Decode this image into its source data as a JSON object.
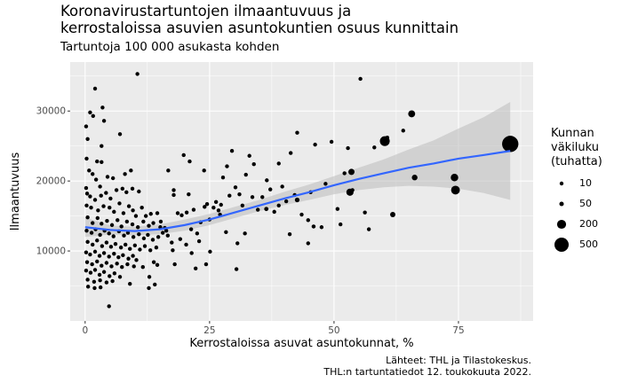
{
  "title_line1": "Koronavirustartuntojen ilmaantuvuus ja",
  "title_line2": "kerrostaloissa asuvien asuntokuntien osuus kunnittain",
  "subtitle": "Tartuntoja 100 000 asukasta kohden",
  "caption_line1": "Lähteet: THL ja Tilastokeskus.",
  "caption_line2": "THL:n tartuntatiedot 12. toukokuuta 2022.",
  "legend": {
    "title_lines": [
      "Kunnan",
      "väkiluku",
      "(tuhatta)"
    ],
    "entries": [
      "10",
      "50",
      "200",
      "500"
    ]
  },
  "colors": {
    "panel": "#ebebeb",
    "grid_major": "#ffffff",
    "point": "#000000",
    "smooth_line": "#3366ff",
    "ribbon": "#c0c0c0"
  },
  "chart_data": {
    "type": "scatter",
    "xlabel": "Kerrostaloissa asuvat asuntokunnat, %",
    "ylabel": "Ilmaantuvuus",
    "xlim": [
      -3,
      90
    ],
    "ylim": [
      0,
      37000
    ],
    "x_ticks": [
      0,
      25,
      50,
      75
    ],
    "x_tick_labels": [
      "0",
      "25",
      "50",
      "75"
    ],
    "y_ticks": [
      10000,
      20000,
      30000
    ],
    "y_tick_labels": [
      "10000",
      "20000",
      "30000"
    ],
    "grid": true,
    "legend_position": "right",
    "size_variable_legend_values": [
      10,
      50,
      200,
      500
    ],
    "points": [
      {
        "x": 0.2,
        "y": 27800,
        "pop": 4
      },
      {
        "x": 0.5,
        "y": 26000,
        "pop": 3
      },
      {
        "x": 1.0,
        "y": 29800,
        "pop": 3
      },
      {
        "x": 1.6,
        "y": 29300,
        "pop": 2
      },
      {
        "x": 2.0,
        "y": 33200,
        "pop": 2
      },
      {
        "x": 3.5,
        "y": 30500,
        "pop": 3
      },
      {
        "x": 3.8,
        "y": 28600,
        "pop": 2
      },
      {
        "x": 3.3,
        "y": 25000,
        "pop": 3
      },
      {
        "x": 7.0,
        "y": 26700,
        "pop": 3
      },
      {
        "x": 10.5,
        "y": 35300,
        "pop": 4
      },
      {
        "x": 0.3,
        "y": 23200,
        "pop": 3
      },
      {
        "x": 0.8,
        "y": 21500,
        "pop": 4
      },
      {
        "x": 1.5,
        "y": 21000,
        "pop": 5
      },
      {
        "x": 2.4,
        "y": 22800,
        "pop": 4
      },
      {
        "x": 3.3,
        "y": 22700,
        "pop": 6
      },
      {
        "x": 2.2,
        "y": 20200,
        "pop": 4
      },
      {
        "x": 3.0,
        "y": 19200,
        "pop": 5
      },
      {
        "x": 0.2,
        "y": 19000,
        "pop": 3
      },
      {
        "x": 4.5,
        "y": 20600,
        "pop": 4
      },
      {
        "x": 5.6,
        "y": 20400,
        "pop": 3
      },
      {
        "x": 8.0,
        "y": 21000,
        "pop": 3
      },
      {
        "x": 9.2,
        "y": 21500,
        "pop": 6
      },
      {
        "x": 0.4,
        "y": 18200,
        "pop": 4
      },
      {
        "x": 1.0,
        "y": 17800,
        "pop": 6
      },
      {
        "x": 2.0,
        "y": 17300,
        "pop": 5
      },
      {
        "x": 3.2,
        "y": 17900,
        "pop": 4
      },
      {
        "x": 4.2,
        "y": 18300,
        "pop": 5
      },
      {
        "x": 5.1,
        "y": 17500,
        "pop": 6
      },
      {
        "x": 6.3,
        "y": 18700,
        "pop": 4
      },
      {
        "x": 7.5,
        "y": 18900,
        "pop": 3
      },
      {
        "x": 8.3,
        "y": 18400,
        "pop": 6
      },
      {
        "x": 9.5,
        "y": 18900,
        "pop": 5
      },
      {
        "x": 10.8,
        "y": 18500,
        "pop": 4
      },
      {
        "x": 0.3,
        "y": 16500,
        "pop": 3
      },
      {
        "x": 1.2,
        "y": 16200,
        "pop": 5
      },
      {
        "x": 2.6,
        "y": 15800,
        "pop": 6
      },
      {
        "x": 3.7,
        "y": 16400,
        "pop": 4
      },
      {
        "x": 4.9,
        "y": 16200,
        "pop": 7
      },
      {
        "x": 5.8,
        "y": 15600,
        "pop": 5
      },
      {
        "x": 6.9,
        "y": 16800,
        "pop": 4
      },
      {
        "x": 7.7,
        "y": 15400,
        "pop": 6
      },
      {
        "x": 8.8,
        "y": 16400,
        "pop": 5
      },
      {
        "x": 9.6,
        "y": 15800,
        "pop": 8
      },
      {
        "x": 10.2,
        "y": 15000,
        "pop": 6
      },
      {
        "x": 11.4,
        "y": 16200,
        "pop": 4
      },
      {
        "x": 12.2,
        "y": 15000,
        "pop": 5
      },
      {
        "x": 13.2,
        "y": 15300,
        "pop": 4
      },
      {
        "x": 14.5,
        "y": 15400,
        "pop": 6
      },
      {
        "x": 16.7,
        "y": 21500,
        "pop": 4
      },
      {
        "x": 17.8,
        "y": 18700,
        "pop": 7
      },
      {
        "x": 19.8,
        "y": 23700,
        "pop": 5
      },
      {
        "x": 21.0,
        "y": 22800,
        "pop": 6
      },
      {
        "x": 0.5,
        "y": 14800,
        "pop": 4
      },
      {
        "x": 1.5,
        "y": 14000,
        "pop": 6
      },
      {
        "x": 2.5,
        "y": 14700,
        "pop": 5
      },
      {
        "x": 3.3,
        "y": 13900,
        "pop": 4
      },
      {
        "x": 4.4,
        "y": 14300,
        "pop": 6
      },
      {
        "x": 5.4,
        "y": 13700,
        "pop": 5
      },
      {
        "x": 6.5,
        "y": 14400,
        "pop": 7
      },
      {
        "x": 7.3,
        "y": 13500,
        "pop": 5
      },
      {
        "x": 8.4,
        "y": 14200,
        "pop": 4
      },
      {
        "x": 9.5,
        "y": 13800,
        "pop": 6
      },
      {
        "x": 10.6,
        "y": 13400,
        "pop": 5
      },
      {
        "x": 11.7,
        "y": 14200,
        "pop": 7
      },
      {
        "x": 12.8,
        "y": 13600,
        "pop": 5
      },
      {
        "x": 13.7,
        "y": 14000,
        "pop": 6
      },
      {
        "x": 15.2,
        "y": 14200,
        "pop": 5
      },
      {
        "x": 16.0,
        "y": 13300,
        "pop": 4
      },
      {
        "x": 0.3,
        "y": 12900,
        "pop": 3
      },
      {
        "x": 1.3,
        "y": 12600,
        "pop": 5
      },
      {
        "x": 2.1,
        "y": 13100,
        "pop": 6
      },
      {
        "x": 3.0,
        "y": 12300,
        "pop": 7
      },
      {
        "x": 3.9,
        "y": 12900,
        "pop": 5
      },
      {
        "x": 4.8,
        "y": 12500,
        "pop": 4
      },
      {
        "x": 5.7,
        "y": 12100,
        "pop": 6
      },
      {
        "x": 6.8,
        "y": 12800,
        "pop": 5
      },
      {
        "x": 7.8,
        "y": 12200,
        "pop": 7
      },
      {
        "x": 8.6,
        "y": 12600,
        "pop": 5
      },
      {
        "x": 9.7,
        "y": 12000,
        "pop": 6
      },
      {
        "x": 10.8,
        "y": 12400,
        "pop": 4
      },
      {
        "x": 11.8,
        "y": 11800,
        "pop": 5
      },
      {
        "x": 12.6,
        "y": 12300,
        "pop": 7
      },
      {
        "x": 13.6,
        "y": 11600,
        "pop": 4
      },
      {
        "x": 14.7,
        "y": 12000,
        "pop": 6
      },
      {
        "x": 16.6,
        "y": 12200,
        "pop": 4
      },
      {
        "x": 17.4,
        "y": 11200,
        "pop": 5
      },
      {
        "x": 0.5,
        "y": 11300,
        "pop": 4
      },
      {
        "x": 1.5,
        "y": 10900,
        "pop": 6
      },
      {
        "x": 2.4,
        "y": 11500,
        "pop": 5
      },
      {
        "x": 3.4,
        "y": 10700,
        "pop": 6
      },
      {
        "x": 4.3,
        "y": 11200,
        "pop": 7
      },
      {
        "x": 5.2,
        "y": 10600,
        "pop": 5
      },
      {
        "x": 6.1,
        "y": 11000,
        "pop": 4
      },
      {
        "x": 7.2,
        "y": 10500,
        "pop": 6
      },
      {
        "x": 8.1,
        "y": 10900,
        "pop": 5
      },
      {
        "x": 9.0,
        "y": 10300,
        "pop": 4
      },
      {
        "x": 10.0,
        "y": 10800,
        "pop": 5
      },
      {
        "x": 11.0,
        "y": 10200,
        "pop": 6
      },
      {
        "x": 12.0,
        "y": 10700,
        "pop": 4
      },
      {
        "x": 13.1,
        "y": 10100,
        "pop": 5
      },
      {
        "x": 14.3,
        "y": 10500,
        "pop": 7
      },
      {
        "x": 0.2,
        "y": 9800,
        "pop": 5
      },
      {
        "x": 1.0,
        "y": 9500,
        "pop": 7
      },
      {
        "x": 2.0,
        "y": 9900,
        "pop": 4
      },
      {
        "x": 2.9,
        "y": 9300,
        "pop": 6
      },
      {
        "x": 3.8,
        "y": 9700,
        "pop": 5
      },
      {
        "x": 4.8,
        "y": 9200,
        "pop": 4
      },
      {
        "x": 5.8,
        "y": 9600,
        "pop": 6
      },
      {
        "x": 6.7,
        "y": 9100,
        "pop": 5
      },
      {
        "x": 7.6,
        "y": 9400,
        "pop": 7
      },
      {
        "x": 8.7,
        "y": 8900,
        "pop": 5
      },
      {
        "x": 9.6,
        "y": 9300,
        "pop": 6
      },
      {
        "x": 10.3,
        "y": 8700,
        "pop": 4
      },
      {
        "x": 0.4,
        "y": 8400,
        "pop": 4
      },
      {
        "x": 1.4,
        "y": 8100,
        "pop": 6
      },
      {
        "x": 2.4,
        "y": 8500,
        "pop": 5
      },
      {
        "x": 3.3,
        "y": 7900,
        "pop": 7
      },
      {
        "x": 4.3,
        "y": 8300,
        "pop": 4
      },
      {
        "x": 5.3,
        "y": 7800,
        "pop": 5
      },
      {
        "x": 6.4,
        "y": 8200,
        "pop": 6
      },
      {
        "x": 7.4,
        "y": 7700,
        "pop": 4
      },
      {
        "x": 8.5,
        "y": 8100,
        "pop": 5
      },
      {
        "x": 9.8,
        "y": 7800,
        "pop": 5
      },
      {
        "x": 11.6,
        "y": 7700,
        "pop": 4
      },
      {
        "x": 13.8,
        "y": 8400,
        "pop": 5
      },
      {
        "x": 0.2,
        "y": 7200,
        "pop": 3
      },
      {
        "x": 1.1,
        "y": 6900,
        "pop": 5
      },
      {
        "x": 2.0,
        "y": 7300,
        "pop": 4
      },
      {
        "x": 2.9,
        "y": 6600,
        "pop": 6
      },
      {
        "x": 3.8,
        "y": 7000,
        "pop": 5
      },
      {
        "x": 4.9,
        "y": 6400,
        "pop": 4
      },
      {
        "x": 5.9,
        "y": 6800,
        "pop": 5
      },
      {
        "x": 7.0,
        "y": 6300,
        "pop": 4
      },
      {
        "x": 0.5,
        "y": 5900,
        "pop": 4
      },
      {
        "x": 1.8,
        "y": 5600,
        "pop": 5
      },
      {
        "x": 3.0,
        "y": 5800,
        "pop": 4
      },
      {
        "x": 4.3,
        "y": 5500,
        "pop": 5
      },
      {
        "x": 5.5,
        "y": 5700,
        "pop": 6
      },
      {
        "x": 9.0,
        "y": 5300,
        "pop": 5
      },
      {
        "x": 0.6,
        "y": 4900,
        "pop": 4
      },
      {
        "x": 1.9,
        "y": 4700,
        "pop": 5
      },
      {
        "x": 3.1,
        "y": 4800,
        "pop": 4
      },
      {
        "x": 12.8,
        "y": 4700,
        "pop": 4
      },
      {
        "x": 14.0,
        "y": 5200,
        "pop": 5
      },
      {
        "x": 4.8,
        "y": 2100,
        "pop": 5
      },
      {
        "x": 12.9,
        "y": 6300,
        "pop": 4
      },
      {
        "x": 14.5,
        "y": 8000,
        "pop": 4
      },
      {
        "x": 15.1,
        "y": 13400,
        "pop": 6
      },
      {
        "x": 15.6,
        "y": 12600,
        "pop": 5
      },
      {
        "x": 16.3,
        "y": 12900,
        "pop": 5
      },
      {
        "x": 17.8,
        "y": 18000,
        "pop": 8
      },
      {
        "x": 18.6,
        "y": 15400,
        "pop": 6
      },
      {
        "x": 19.4,
        "y": 15100,
        "pop": 9
      },
      {
        "x": 20.4,
        "y": 15500,
        "pop": 7
      },
      {
        "x": 20.8,
        "y": 18100,
        "pop": 5
      },
      {
        "x": 21.3,
        "y": 13100,
        "pop": 6
      },
      {
        "x": 21.8,
        "y": 15900,
        "pop": 5
      },
      {
        "x": 22.5,
        "y": 12500,
        "pop": 4
      },
      {
        "x": 23.2,
        "y": 14100,
        "pop": 8
      },
      {
        "x": 24.0,
        "y": 16300,
        "pop": 6
      },
      {
        "x": 24.5,
        "y": 16700,
        "pop": 5
      },
      {
        "x": 25.0,
        "y": 14500,
        "pop": 7
      },
      {
        "x": 23.9,
        "y": 21500,
        "pop": 8
      },
      {
        "x": 25.8,
        "y": 16200,
        "pop": 9
      },
      {
        "x": 26.3,
        "y": 17000,
        "pop": 6
      },
      {
        "x": 26.8,
        "y": 15800,
        "pop": 10
      },
      {
        "x": 27.3,
        "y": 16600,
        "pop": 7
      },
      {
        "x": 27.7,
        "y": 20500,
        "pop": 6
      },
      {
        "x": 28.5,
        "y": 22100,
        "pop": 7
      },
      {
        "x": 29.5,
        "y": 24300,
        "pop": 11
      },
      {
        "x": 30.2,
        "y": 19100,
        "pop": 8
      },
      {
        "x": 31.0,
        "y": 18100,
        "pop": 10
      },
      {
        "x": 31.6,
        "y": 16500,
        "pop": 12
      },
      {
        "x": 32.3,
        "y": 20900,
        "pop": 13
      },
      {
        "x": 33.0,
        "y": 23600,
        "pop": 9
      },
      {
        "x": 33.9,
        "y": 22400,
        "pop": 8
      },
      {
        "x": 34.7,
        "y": 15900,
        "pop": 11
      },
      {
        "x": 35.6,
        "y": 17700,
        "pop": 14
      },
      {
        "x": 36.5,
        "y": 20100,
        "pop": 9
      },
      {
        "x": 37.2,
        "y": 18800,
        "pop": 13
      },
      {
        "x": 38.0,
        "y": 15600,
        "pop": 8
      },
      {
        "x": 38.9,
        "y": 22500,
        "pop": 10
      },
      {
        "x": 39.6,
        "y": 19200,
        "pop": 12
      },
      {
        "x": 40.4,
        "y": 17100,
        "pop": 9
      },
      {
        "x": 41.3,
        "y": 24000,
        "pop": 15
      },
      {
        "x": 42.1,
        "y": 18000,
        "pop": 11
      },
      {
        "x": 42.6,
        "y": 26900,
        "pop": 17
      },
      {
        "x": 43.5,
        "y": 15200,
        "pop": 10
      },
      {
        "x": 44.8,
        "y": 14400,
        "pop": 14
      },
      {
        "x": 45.3,
        "y": 18400,
        "pop": 12
      },
      {
        "x": 46.2,
        "y": 25200,
        "pop": 9
      },
      {
        "x": 47.5,
        "y": 13400,
        "pop": 16
      },
      {
        "x": 48.3,
        "y": 19600,
        "pop": 13
      },
      {
        "x": 49.5,
        "y": 25600,
        "pop": 19
      },
      {
        "x": 50.7,
        "y": 16000,
        "pop": 8
      },
      {
        "x": 51.3,
        "y": 13800,
        "pop": 11
      },
      {
        "x": 52.1,
        "y": 21100,
        "pop": 20
      },
      {
        "x": 52.8,
        "y": 24700,
        "pop": 10
      },
      {
        "x": 53.7,
        "y": 18700,
        "pop": 14
      },
      {
        "x": 55.3,
        "y": 34600,
        "pop": 8
      },
      {
        "x": 56.2,
        "y": 15500,
        "pop": 12
      },
      {
        "x": 57.0,
        "y": 13100,
        "pop": 16
      },
      {
        "x": 58.1,
        "y": 24800,
        "pop": 10
      },
      {
        "x": 59.9,
        "y": 25900,
        "pop": 35
      },
      {
        "x": 60.7,
        "y": 26200,
        "pop": 25
      },
      {
        "x": 61.8,
        "y": 15200,
        "pop": 70
      },
      {
        "x": 63.9,
        "y": 27200,
        "pop": 22
      },
      {
        "x": 65.6,
        "y": 29600,
        "pop": 120
      },
      {
        "x": 66.2,
        "y": 20500,
        "pop": 80
      },
      {
        "x": 74.2,
        "y": 20500,
        "pop": 140
      },
      {
        "x": 74.4,
        "y": 18700,
        "pop": 190
      },
      {
        "x": 85.4,
        "y": 25300,
        "pop": 660
      },
      {
        "x": 60.2,
        "y": 25700,
        "pop": 240
      },
      {
        "x": 53.2,
        "y": 18400,
        "pop": 130
      },
      {
        "x": 53.5,
        "y": 21300,
        "pop": 95
      },
      {
        "x": 45.9,
        "y": 13500,
        "pop": 40
      },
      {
        "x": 42.6,
        "y": 17300,
        "pop": 55
      },
      {
        "x": 36.4,
        "y": 16000,
        "pop": 45
      },
      {
        "x": 30.4,
        "y": 7400,
        "pop": 7
      },
      {
        "x": 30.6,
        "y": 11100,
        "pop": 8
      },
      {
        "x": 28.3,
        "y": 12700,
        "pop": 9
      },
      {
        "x": 27.1,
        "y": 15200,
        "pop": 6
      },
      {
        "x": 29.0,
        "y": 17900,
        "pop": 5
      },
      {
        "x": 33.6,
        "y": 17700,
        "pop": 6
      },
      {
        "x": 32.1,
        "y": 12500,
        "pop": 7
      },
      {
        "x": 38.9,
        "y": 16500,
        "pop": 8
      },
      {
        "x": 41.1,
        "y": 12400,
        "pop": 6
      },
      {
        "x": 44.8,
        "y": 11100,
        "pop": 7
      },
      {
        "x": 25.1,
        "y": 9900,
        "pop": 6
      },
      {
        "x": 24.3,
        "y": 8100,
        "pop": 5
      },
      {
        "x": 22.2,
        "y": 7500,
        "pop": 5
      },
      {
        "x": 18.0,
        "y": 8100,
        "pop": 4
      },
      {
        "x": 17.6,
        "y": 10100,
        "pop": 5
      },
      {
        "x": 19.1,
        "y": 11700,
        "pop": 6
      },
      {
        "x": 20.3,
        "y": 10900,
        "pop": 5
      },
      {
        "x": 21.4,
        "y": 9700,
        "pop": 4
      },
      {
        "x": 22.9,
        "y": 11400,
        "pop": 5
      }
    ],
    "smooth": {
      "type": "loess",
      "x": [
        0,
        5,
        10,
        15,
        20,
        25,
        30,
        35,
        40,
        45,
        50,
        55,
        60,
        65,
        70,
        75,
        80,
        85.4
      ],
      "y": [
        13400,
        13000,
        12850,
        13100,
        13700,
        14500,
        15500,
        16500,
        17500,
        18400,
        19400,
        20300,
        21100,
        21900,
        22500,
        23200,
        23700,
        24300
      ],
      "lower": [
        12000,
        12350,
        12250,
        12400,
        12900,
        13700,
        14700,
        15700,
        16550,
        17300,
        18100,
        18700,
        19100,
        19300,
        19200,
        18900,
        18300,
        17300
      ],
      "upper": [
        14800,
        13650,
        13450,
        13800,
        14500,
        15300,
        16300,
        17300,
        18450,
        19500,
        20700,
        21900,
        23100,
        24500,
        25800,
        27500,
        29100,
        31300
      ]
    }
  }
}
